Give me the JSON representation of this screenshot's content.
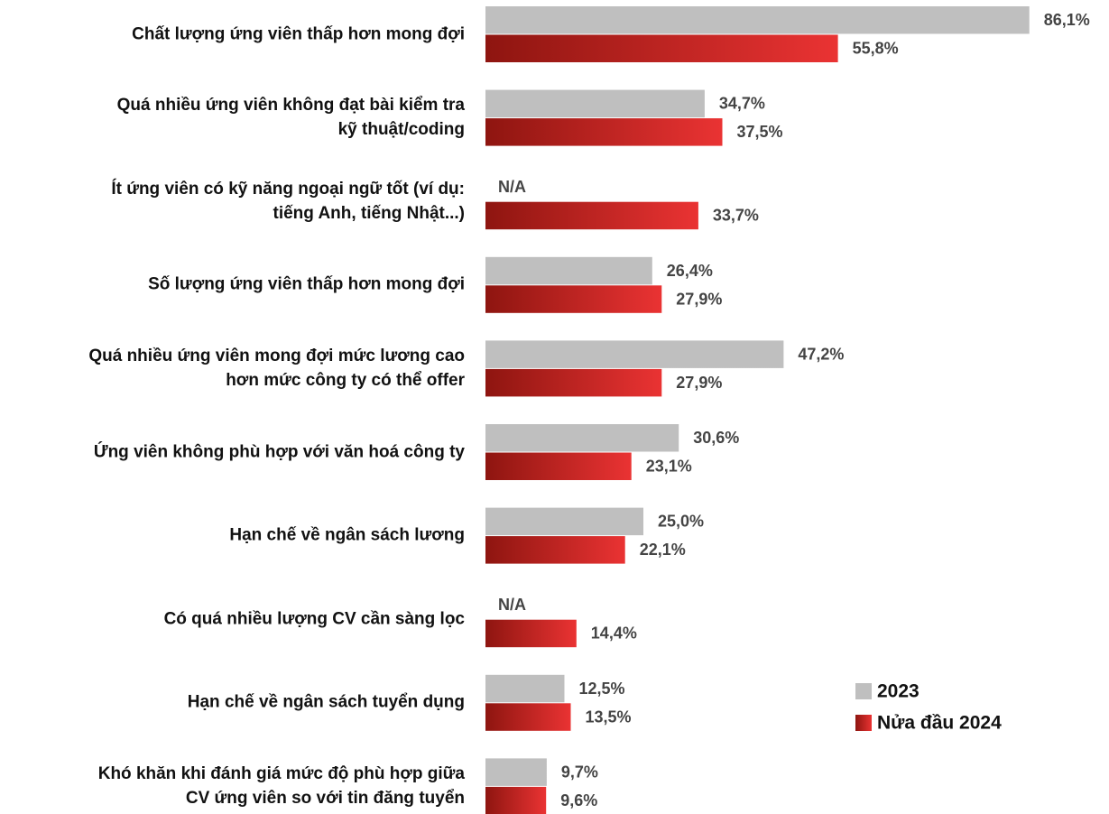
{
  "chart_data": {
    "type": "bar",
    "orientation": "horizontal",
    "categories": [
      "Chất lượng ứng viên thấp hơn mong đợi",
      "Quá nhiều ứng viên không đạt bài kiểm tra\nkỹ thuật/coding",
      "Ít ứng viên có kỹ năng ngoại ngữ tốt (ví dụ:\ntiếng Anh, tiếng Nhật...)",
      "Số lượng ứng viên thấp hơn mong đợi",
      "Quá nhiều ứng viên mong đợi mức lương cao\nhơn mức công ty có thể offer",
      "Ứng viên không phù hợp với văn hoá công ty",
      "Hạn chế về ngân sách lương",
      "Có quá nhiều lượng CV cần sàng lọc",
      "Hạn chế về ngân sách tuyển dụng",
      "Khó khăn khi đánh giá mức độ phù hợp giữa\nCV ứng viên so với tin đăng tuyển"
    ],
    "series": [
      {
        "name": "2023",
        "color": "#bfbfbf",
        "values": [
          86.1,
          34.7,
          null,
          26.4,
          47.2,
          30.6,
          25.0,
          null,
          12.5,
          9.7
        ],
        "value_labels": [
          "86,1%",
          "34,7%",
          "N/A",
          "26,4%",
          "47,2%",
          "30,6%",
          "25,0%",
          "N/A",
          "12,5%",
          "9,7%"
        ]
      },
      {
        "name": "Nửa đầu 2024",
        "color": "#ea3333",
        "values": [
          55.8,
          37.5,
          33.7,
          27.9,
          27.9,
          23.1,
          22.1,
          14.4,
          13.5,
          9.6
        ],
        "value_labels": [
          "55,8%",
          "37,5%",
          "33,7%",
          "27,9%",
          "27,9%",
          "23,1%",
          "22,1%",
          "14,4%",
          "13,5%",
          "9,6%"
        ]
      }
    ],
    "xlim": [
      0,
      90
    ],
    "legend": "lower right"
  }
}
